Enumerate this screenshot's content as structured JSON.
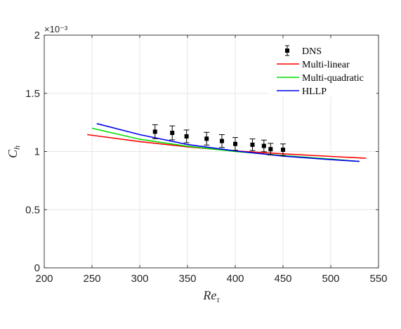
{
  "chart_data": {
    "type": "line",
    "xlabel": "Re",
    "xlabel_sub": "τ",
    "ylabel": "C",
    "ylabel_sub": "h",
    "y_exponent_label": "×10⁻³",
    "xlim": [
      200,
      550
    ],
    "ylim": [
      0,
      2
    ],
    "xticks": [
      200,
      250,
      300,
      350,
      400,
      450,
      500,
      550
    ],
    "xtick_labels": [
      "200",
      "250",
      "300",
      "350",
      "400",
      "450",
      "500",
      "550"
    ],
    "yticks": [
      0,
      0.5,
      1,
      1.5,
      2
    ],
    "ytick_labels": [
      "0",
      "0.5",
      "1",
      "1.5",
      "2"
    ],
    "grid": true,
    "legend_position": "top-right",
    "series": [
      {
        "name": "DNS",
        "kind": "errorbar",
        "color": "#000000",
        "x": [
          316,
          334,
          349,
          370,
          386,
          400,
          418,
          430,
          437,
          450
        ],
        "y": [
          1.17,
          1.16,
          1.13,
          1.11,
          1.09,
          1.065,
          1.058,
          1.048,
          1.02,
          1.015
        ],
        "err": [
          0.06,
          0.06,
          0.055,
          0.055,
          0.055,
          0.055,
          0.05,
          0.05,
          0.05,
          0.05
        ]
      },
      {
        "name": "Multi-linear",
        "kind": "line",
        "color": "#ff0000",
        "x": [
          245,
          300,
          350,
          400,
          450,
          500,
          537
        ],
        "y": [
          1.145,
          1.085,
          1.04,
          1.005,
          0.98,
          0.958,
          0.942
        ]
      },
      {
        "name": "Multi-quadratic",
        "kind": "line",
        "color": "#00dd00",
        "x": [
          250,
          300,
          350,
          400,
          450,
          500,
          530
        ],
        "y": [
          1.2,
          1.105,
          1.045,
          1.0,
          0.965,
          0.935,
          0.915
        ]
      },
      {
        "name": "HLLP",
        "kind": "line",
        "color": "#0000ee",
        "x": [
          255,
          300,
          350,
          400,
          450,
          500,
          530
        ],
        "y": [
          1.24,
          1.145,
          1.06,
          1.005,
          0.96,
          0.93,
          0.915
        ]
      }
    ]
  }
}
